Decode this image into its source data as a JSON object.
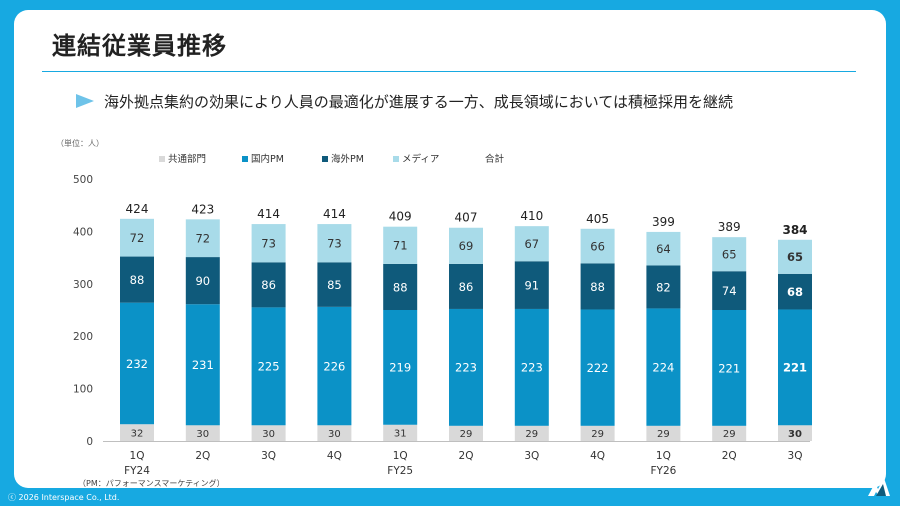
{
  "slide": {
    "title": "連結従業員推移",
    "subtitle": "海外拠点集約の効果により人員の最適化が進展する一方、成長領域においては積極採用を継続",
    "footer": "ⓒ 2026 Interspace Co., Ltd.",
    "logo_icon": "interspace-logo-icon"
  },
  "colors": {
    "background": "#17a9e1",
    "accent_line": "#17a9e1",
    "arrow": "#6ec3e9",
    "共通部門": "#d9d9d9",
    "国内PM": "#0b92c7",
    "海外PM": "#0f5a7b",
    "メディア": "#a8dbe9"
  },
  "chart_data": {
    "type": "bar",
    "stacked": true,
    "unit_label": "（単位：人）",
    "note": "（PM：パフォーマンスマーケティング）",
    "ylim": [
      0,
      500
    ],
    "yticks": [
      0,
      100,
      200,
      300,
      400,
      500
    ],
    "grid": false,
    "legend_position": "top",
    "total_label": "合計",
    "categories": [
      "1Q",
      "2Q",
      "3Q",
      "4Q",
      "1Q",
      "2Q",
      "3Q",
      "4Q",
      "1Q",
      "2Q",
      "3Q"
    ],
    "fiscal_years": [
      {
        "label": "FY24",
        "index": 0
      },
      {
        "label": "FY25",
        "index": 4
      },
      {
        "label": "FY26",
        "index": 8
      }
    ],
    "series": [
      {
        "name": "共通部門",
        "values": [
          32,
          30,
          30,
          30,
          31,
          29,
          29,
          29,
          29,
          29,
          30
        ]
      },
      {
        "name": "国内PM",
        "values": [
          232,
          231,
          225,
          226,
          219,
          223,
          223,
          222,
          224,
          221,
          221
        ]
      },
      {
        "name": "海外PM",
        "values": [
          88,
          90,
          86,
          85,
          88,
          86,
          91,
          88,
          82,
          74,
          68
        ]
      },
      {
        "name": "メディア",
        "values": [
          72,
          72,
          73,
          73,
          71,
          69,
          67,
          66,
          64,
          65,
          65
        ]
      }
    ],
    "totals": [
      424,
      423,
      414,
      414,
      409,
      407,
      410,
      405,
      399,
      389,
      384
    ],
    "highlight_index": 10
  }
}
